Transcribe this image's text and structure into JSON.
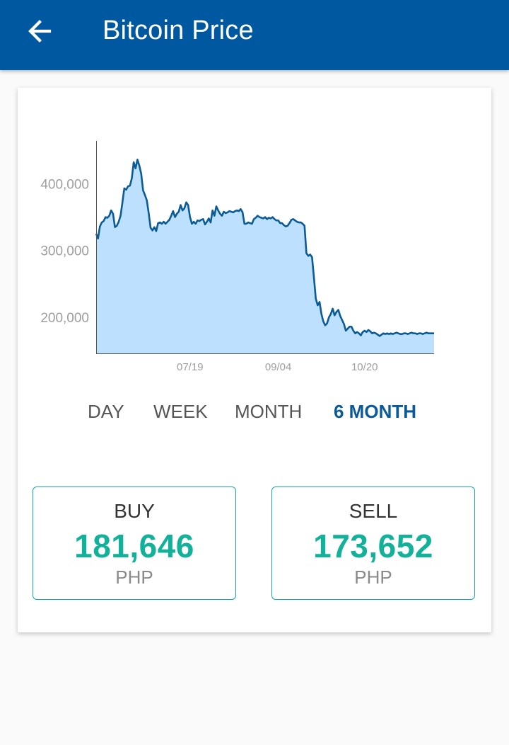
{
  "header": {
    "title": "Bitcoin Price",
    "back_icon": "arrow-left-icon",
    "background_color": "#0058a0"
  },
  "chart_data": {
    "type": "area",
    "title": "",
    "xlabel": "",
    "ylabel": "",
    "x_tick_labels": [
      "07/19",
      "09/04",
      "10/20"
    ],
    "y_tick_labels": [
      "400,000",
      "300,000",
      "200,000"
    ],
    "y_ticks": [
      400000,
      300000,
      200000
    ],
    "ylim": [
      146000,
      464000
    ],
    "x_range_days": [
      0,
      180
    ],
    "x_tick_days": [
      50,
      97,
      143
    ],
    "grid": false,
    "legend": "none",
    "line_color": "#0b5b96",
    "fill_color": "#bde0fe",
    "series": [
      {
        "x": [
          0,
          1,
          2,
          3,
          4,
          5,
          6,
          7,
          8,
          9,
          10,
          11,
          12,
          13,
          14,
          15,
          16,
          17,
          18,
          19,
          20,
          21,
          22,
          23,
          24,
          25,
          26,
          27,
          28,
          29,
          30,
          31,
          32,
          33,
          34,
          35,
          36,
          37,
          38,
          39,
          40,
          41,
          42,
          43,
          44,
          45,
          46,
          47,
          48,
          49,
          50,
          51,
          52,
          53,
          54,
          55,
          56,
          57,
          58,
          59,
          60,
          61,
          62,
          63,
          64,
          65,
          66,
          67,
          68,
          69,
          70,
          71,
          72,
          73,
          74,
          75,
          76,
          77,
          78,
          79,
          80,
          81,
          82,
          83,
          84,
          85,
          86,
          87,
          88,
          89,
          90,
          91,
          92,
          93,
          94,
          95,
          96,
          97,
          98,
          99,
          100,
          101,
          102,
          103,
          104,
          105,
          106,
          107,
          108,
          109,
          110,
          111,
          112,
          113,
          114,
          115,
          116,
          117,
          118,
          119,
          120,
          121,
          122,
          123,
          124,
          125,
          126,
          127,
          128,
          129,
          130,
          131,
          132,
          133,
          134,
          135,
          136,
          137,
          138,
          139,
          140,
          141,
          142,
          143,
          144,
          145,
          146,
          147,
          148,
          149,
          150,
          151,
          152,
          153,
          154,
          155,
          156,
          157,
          158,
          159,
          160,
          161,
          162,
          163,
          164,
          165,
          166,
          167,
          168,
          169,
          170,
          171,
          172,
          173,
          174,
          175,
          176,
          177,
          178,
          179,
          180
        ],
        "values": [
          325000,
          318000,
          336000,
          342000,
          344000,
          350000,
          349000,
          352000,
          360000,
          355000,
          335000,
          337000,
          343000,
          352000,
          372000,
          393000,
          391000,
          396000,
          397000,
          408000,
          432000,
          423000,
          436000,
          427000,
          415000,
          390000,
          383000,
          375000,
          356000,
          334000,
          330000,
          335000,
          329000,
          341000,
          342000,
          340000,
          343000,
          340000,
          343000,
          346000,
          352000,
          359000,
          350000,
          355000,
          358000,
          368000,
          360000,
          363000,
          372000,
          368000,
          350000,
          340000,
          343000,
          340000,
          345000,
          344000,
          346000,
          347000,
          339000,
          343000,
          348000,
          342000,
          360000,
          352000,
          366000,
          360000,
          355000,
          352000,
          358000,
          356000,
          357000,
          359000,
          358000,
          357000,
          359000,
          360000,
          359000,
          362000,
          357000,
          340000,
          340000,
          342000,
          341000,
          340000,
          347000,
          349000,
          352000,
          350000,
          349000,
          348000,
          350000,
          347000,
          349000,
          348000,
          350000,
          347000,
          345000,
          345000,
          341000,
          341000,
          338000,
          336000,
          337000,
          341000,
          346000,
          347000,
          345000,
          343000,
          342000,
          342000,
          340000,
          337000,
          296000,
          292000,
          294000,
          290000,
          260000,
          228000,
          218000,
          223000,
          205000,
          194000,
          188000,
          191000,
          200000,
          205000,
          213000,
          203000,
          208000,
          211000,
          202000,
          196000,
          190000,
          180000,
          183000,
          186000,
          186000,
          180000,
          176000,
          178000,
          176000,
          173000,
          178000,
          180000,
          178000,
          181000,
          179000,
          176000,
          177000,
          176000,
          174000,
          172000,
          174000,
          176000,
          175000,
          176000,
          175000,
          176000,
          175000,
          176000,
          177000,
          176000,
          175000,
          175000,
          176000,
          176000,
          175000,
          176000,
          177000,
          176000,
          176000,
          175000,
          176000,
          176000,
          175000,
          176000,
          177000,
          176000,
          176000,
          176000,
          176000
        ]
      }
    ]
  },
  "range_tabs": {
    "items": [
      {
        "label": "DAY",
        "active": false
      },
      {
        "label": "WEEK",
        "active": false
      },
      {
        "label": "MONTH",
        "active": false
      },
      {
        "label": "6 MONTH",
        "active": true
      }
    ]
  },
  "prices": {
    "buy": {
      "label": "BUY",
      "value": "181,646",
      "currency": "PHP"
    },
    "sell": {
      "label": "SELL",
      "value": "173,652",
      "currency": "PHP"
    },
    "value_color": "#14b19a",
    "border_color": "#17a6a6"
  }
}
